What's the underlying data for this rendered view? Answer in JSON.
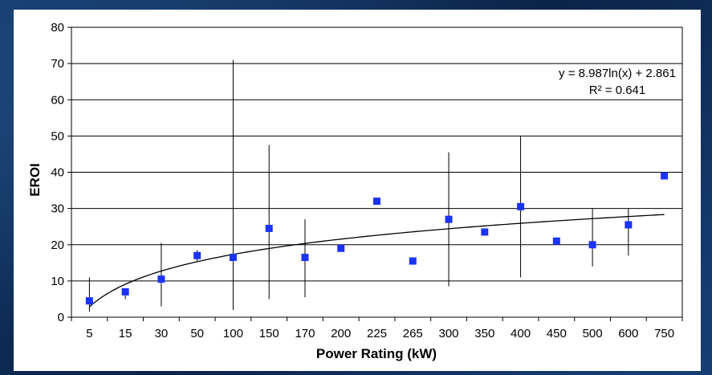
{
  "chart_data": {
    "type": "scatter",
    "title": "",
    "xlabel": "Power Rating (kW)",
    "ylabel": "EROI",
    "ylim": [
      0,
      80
    ],
    "yticks": [
      0,
      10,
      20,
      30,
      40,
      50,
      60,
      70,
      80
    ],
    "categories": [
      "5",
      "15",
      "30",
      "50",
      "100",
      "150",
      "170",
      "200",
      "225",
      "265",
      "300",
      "350",
      "400",
      "450",
      "500",
      "600",
      "750"
    ],
    "values": [
      4.5,
      7,
      10.5,
      17,
      16.5,
      24.5,
      16.5,
      19,
      32,
      15.5,
      27,
      23.5,
      30.5,
      21,
      20,
      25.5,
      39
    ],
    "error_low": [
      1.5,
      5,
      3,
      15.5,
      2,
      5,
      5.5,
      null,
      null,
      null,
      8.5,
      null,
      11,
      null,
      14,
      17,
      null
    ],
    "error_high": [
      11,
      8,
      20.5,
      18.5,
      71,
      47.5,
      27,
      null,
      null,
      null,
      45.5,
      null,
      50,
      null,
      30,
      30,
      null
    ],
    "trendline": {
      "equation": "y = 8.987ln(x) + 2.861",
      "r_squared": "R² = 0.641",
      "a": 8.987,
      "b": 2.861
    },
    "grid": true,
    "marker_color": "#1a33ff",
    "line_color": "#000000"
  }
}
